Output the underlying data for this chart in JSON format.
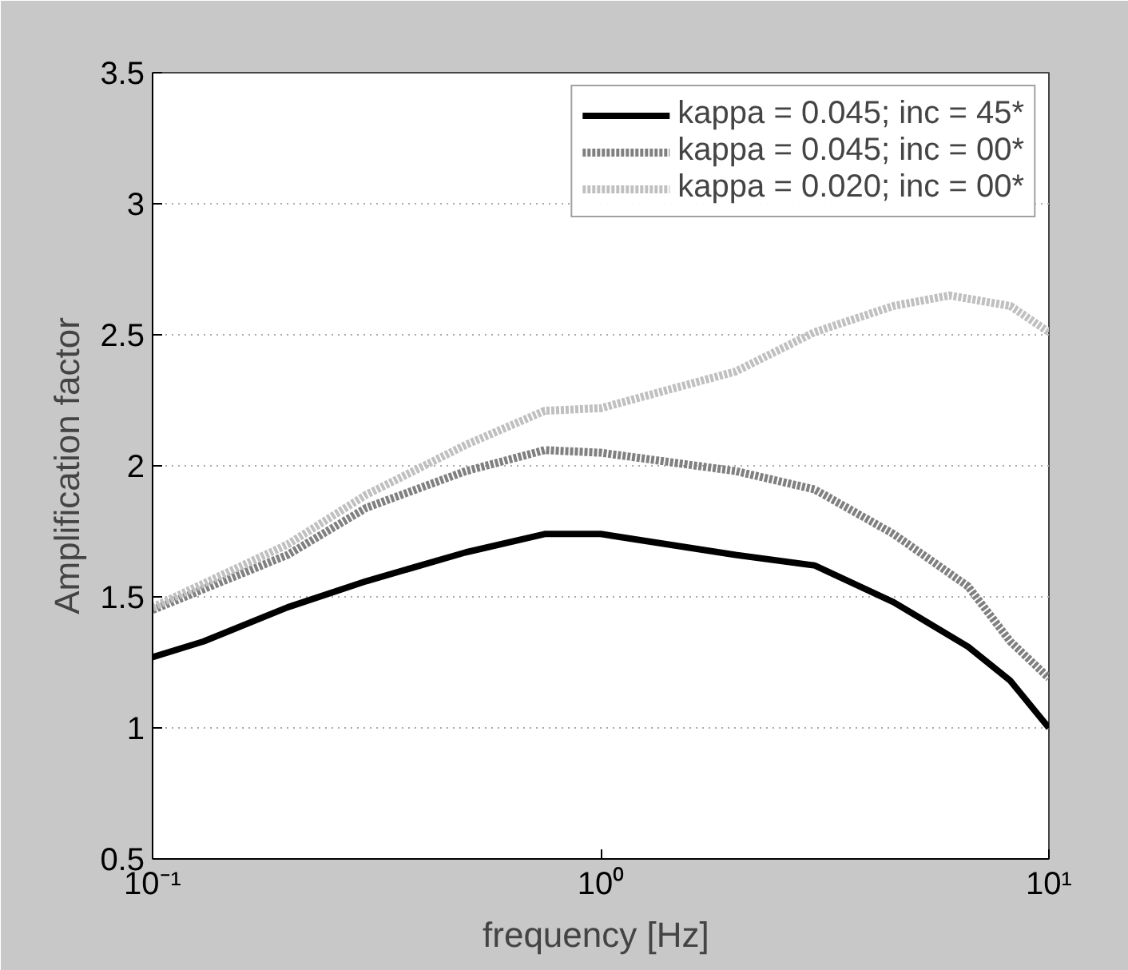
{
  "chart_data": {
    "type": "line",
    "xlabel": "frequency  [Hz]",
    "ylabel": "Amplification factor",
    "log": "x",
    "xlim": [
      0.1,
      10
    ],
    "xticks": [
      {
        "value": 0.1,
        "label": "10⁻¹"
      },
      {
        "value": 1,
        "label": "10⁰"
      },
      {
        "value": 10,
        "label": "10¹"
      }
    ],
    "ylim": [
      0.5,
      3.5
    ],
    "yticks": [
      0.5,
      1,
      1.5,
      2,
      2.5,
      3,
      3.5
    ],
    "grid": "y",
    "legend": "top right",
    "series": [
      {
        "name": "kappa = 0.045; inc = 45*",
        "color": "#000000",
        "line_style": "solid",
        "x": [
          0.1,
          0.13,
          0.2,
          0.3,
          0.5,
          0.75,
          1,
          2,
          3,
          4.5,
          6.6,
          8.2,
          10
        ],
        "values": [
          1.27,
          1.33,
          1.46,
          1.56,
          1.67,
          1.74,
          1.74,
          1.66,
          1.62,
          1.48,
          1.31,
          1.18,
          1.0
        ]
      },
      {
        "name": "kappa = 0.045; inc = 00*",
        "color": "#808080",
        "line_style": "dotted",
        "x": [
          0.1,
          0.2,
          0.3,
          0.5,
          0.75,
          1,
          2,
          3,
          4.5,
          6.6,
          8.2,
          10
        ],
        "values": [
          1.45,
          1.66,
          1.84,
          1.98,
          2.06,
          2.05,
          1.98,
          1.91,
          1.74,
          1.54,
          1.33,
          1.19
        ]
      },
      {
        "name": "kappa = 0.020; inc = 00*",
        "color": "#c0c0c0",
        "line_style": "dotted",
        "x": [
          0.1,
          0.2,
          0.3,
          0.5,
          0.75,
          1,
          2,
          3,
          4.5,
          6,
          8.2,
          10
        ],
        "values": [
          1.46,
          1.7,
          1.89,
          2.08,
          2.21,
          2.22,
          2.36,
          2.51,
          2.61,
          2.65,
          2.61,
          2.51
        ]
      }
    ]
  }
}
